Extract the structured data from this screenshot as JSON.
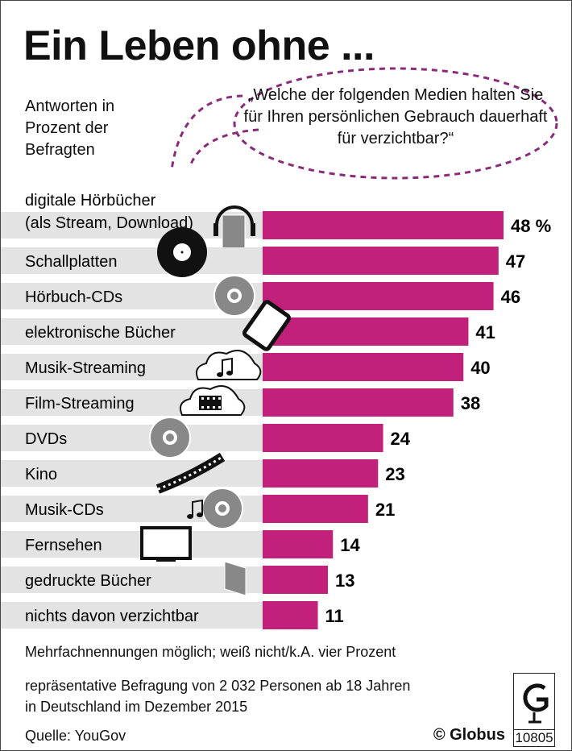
{
  "title": "Ein Leben ohne ...",
  "subtitle": [
    "Antworten in",
    "Prozent der",
    "Befragten"
  ],
  "question": "„Welche der folgenden Medien halten Sie für Ihren persönlichen Gebrauch dauerhaft für verzichtbar?“",
  "colors": {
    "bar": "#c1207b",
    "band": "#e3e3e3",
    "bubble": "#8a2a7a"
  },
  "chart_data": {
    "type": "bar",
    "orientation": "horizontal",
    "unit": "%",
    "categories": [
      [
        "digitale Hörbücher",
        "(als Stream, Download)"
      ],
      [
        "Schallplatten"
      ],
      [
        "Hörbuch-CDs"
      ],
      [
        "elektronische Bücher"
      ],
      [
        "Musik-Streaming"
      ],
      [
        "Film-Streaming"
      ],
      [
        "DVDs"
      ],
      [
        "Kino"
      ],
      [
        "Musik-CDs"
      ],
      [
        "Fernsehen"
      ],
      [
        "gedruckte Bücher"
      ],
      [
        "nichts davon verzichtbar"
      ]
    ],
    "values": [
      48,
      47,
      46,
      41,
      40,
      38,
      24,
      23,
      21,
      14,
      13,
      11
    ],
    "value_labels": [
      "48 %",
      "47",
      "46",
      "41",
      "40",
      "38",
      "24",
      "23",
      "21",
      "14",
      "13",
      "11"
    ],
    "icons": [
      "headphones-book-icon",
      "vinyl-record-icon",
      "cd-icon",
      "ebook-reader-icon",
      "music-cloud-icon",
      "film-cloud-icon",
      "dvd-icon",
      "film-strip-icon",
      "music-cd-icon",
      "tv-icon",
      "book-icon",
      null
    ]
  },
  "footer": {
    "note": "Mehrfachnennungen möglich; weiß nicht/k.A. vier Prozent",
    "survey": [
      "repräsentative Befragung von 2 032 Personen ab 18 Jahren",
      "in Deutschland im Dezember 2015"
    ],
    "source": "Quelle: YouGov",
    "copyright": "© Globus",
    "graphic_number": "10805"
  }
}
